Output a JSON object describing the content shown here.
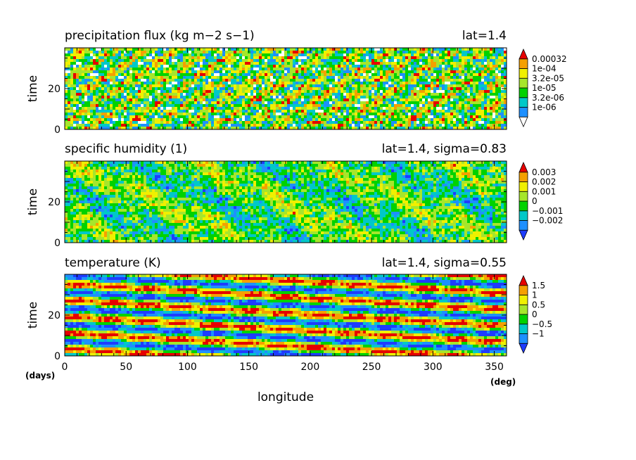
{
  "chart_data": [
    {
      "type": "heatmap",
      "title": "precipitation flux (kg m−2 s−1)",
      "subtitle": "lat=1.4",
      "ylabel": "time",
      "xlim": [
        0,
        360
      ],
      "ylim": [
        0,
        40
      ],
      "yticks": [
        0,
        20
      ],
      "colorbar": {
        "labels": [
          "0.00032",
          "1e-04",
          "3.2e-05",
          "1e-05",
          "3.2e-06",
          "1e-06"
        ],
        "colors": [
          "#ffffff",
          "#1e90ff",
          "#00c8c8",
          "#00d200",
          "#a6e62b",
          "#f0f000",
          "#f5a000",
          "#e60000"
        ]
      },
      "pattern": "noise"
    },
    {
      "type": "heatmap",
      "title": "specific humidity (1)",
      "subtitle": "lat=1.4, sigma=0.83",
      "ylabel": "time",
      "xlim": [
        0,
        360
      ],
      "ylim": [
        0,
        40
      ],
      "yticks": [
        0,
        20
      ],
      "colorbar": {
        "labels": [
          "0.003",
          "0.002",
          "0.001",
          "0",
          "−0.001",
          "−0.002"
        ],
        "colors": [
          "#1e3cff",
          "#1e90ff",
          "#00c8c8",
          "#00d200",
          "#a6e62b",
          "#f0f000",
          "#f5a000",
          "#e60000"
        ]
      },
      "pattern": "blobs"
    },
    {
      "type": "heatmap",
      "title": "temperature (K)",
      "subtitle": "lat=1.4, sigma=0.55",
      "ylabel": "time",
      "xlim": [
        0,
        360
      ],
      "ylim": [
        0,
        40
      ],
      "yticks": [
        0,
        20
      ],
      "colorbar": {
        "labels": [
          "1.5",
          "1",
          "0.5",
          "0",
          "−0.5",
          "−1"
        ],
        "colors": [
          "#1e3cff",
          "#1e90ff",
          "#00c8c8",
          "#00d200",
          "#a6e62b",
          "#f0f000",
          "#f5a000",
          "#e60000"
        ]
      },
      "pattern": "waves"
    }
  ],
  "xaxis": {
    "label": "longitude",
    "ticks": [
      0,
      50,
      100,
      150,
      200,
      250,
      300,
      350
    ],
    "unit_left": "(days)",
    "unit_right": "(deg)"
  }
}
